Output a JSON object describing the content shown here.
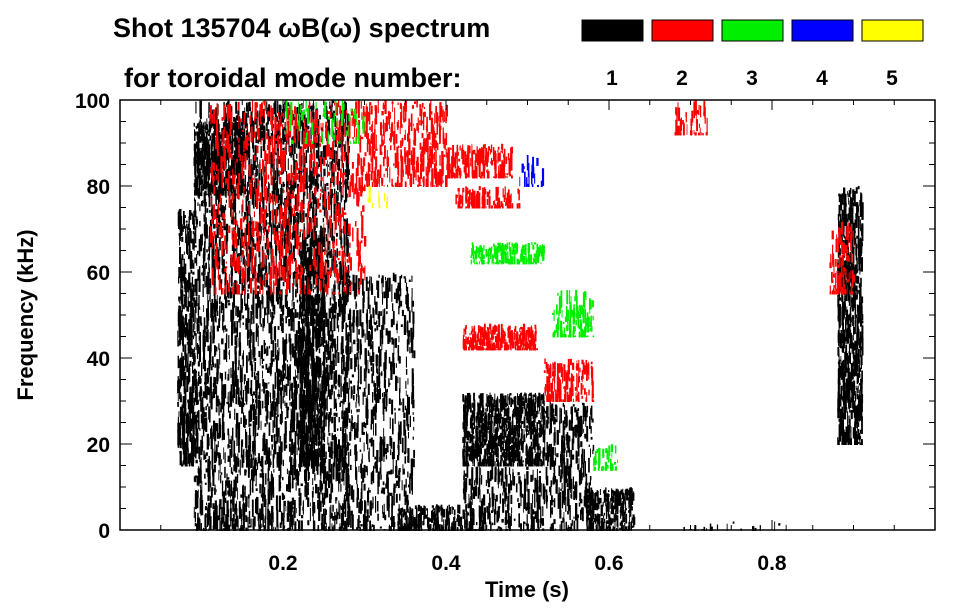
{
  "chart_data": {
    "type": "heatmap",
    "title_line1": "Shot 135704 ωB(ω) spectrum",
    "title_line2": "for toroidal mode number:",
    "xlabel": "Time (s)",
    "ylabel": "Frequency (kHz)",
    "xlim": [
      0.0,
      1.0
    ],
    "ylim": [
      0,
      100
    ],
    "xticks": [
      {
        "value": 0.2,
        "label": "0.2"
      },
      {
        "value": 0.4,
        "label": "0.4"
      },
      {
        "value": 0.6,
        "label": "0.6"
      },
      {
        "value": 0.8,
        "label": "0.8"
      }
    ],
    "yticks": [
      {
        "value": 0,
        "label": "0"
      },
      {
        "value": 20,
        "label": "20"
      },
      {
        "value": 40,
        "label": "40"
      },
      {
        "value": 60,
        "label": "60"
      },
      {
        "value": 80,
        "label": "80"
      },
      {
        "value": 100,
        "label": "100"
      }
    ],
    "legend": [
      {
        "mode": "1",
        "color": "#000000"
      },
      {
        "mode": "2",
        "color": "#ff0000"
      },
      {
        "mode": "3",
        "color": "#00ee00"
      },
      {
        "mode": "4",
        "color": "#0000ff"
      },
      {
        "mode": "5",
        "color": "#ffff00"
      }
    ],
    "regions": [
      {
        "mode": "1",
        "t": [
          0.07,
          0.09
        ],
        "f": [
          15,
          75
        ],
        "density": 0.55
      },
      {
        "mode": "1",
        "t": [
          0.09,
          0.15
        ],
        "f": [
          78,
          95
        ],
        "density": 0.75
      },
      {
        "mode": "1",
        "t": [
          0.09,
          0.16
        ],
        "f": [
          0,
          100
        ],
        "density": 0.3
      },
      {
        "mode": "1",
        "t": [
          0.16,
          0.28
        ],
        "f": [
          0,
          100
        ],
        "density": 0.3
      },
      {
        "mode": "1",
        "t": [
          0.22,
          0.25
        ],
        "f": [
          15,
          70
        ],
        "density": 0.55
      },
      {
        "mode": "1",
        "t": [
          0.27,
          0.36
        ],
        "f": [
          0,
          60
        ],
        "density": 0.2
      },
      {
        "mode": "1",
        "t": [
          0.34,
          0.42
        ],
        "f": [
          0,
          6
        ],
        "density": 0.7
      },
      {
        "mode": "1",
        "t": [
          0.42,
          0.52
        ],
        "f": [
          15,
          32
        ],
        "density": 0.92
      },
      {
        "mode": "1",
        "t": [
          0.42,
          0.52
        ],
        "f": [
          0,
          15
        ],
        "density": 0.3
      },
      {
        "mode": "1",
        "t": [
          0.52,
          0.58
        ],
        "f": [
          0,
          30
        ],
        "density": 0.28
      },
      {
        "mode": "1",
        "t": [
          0.57,
          0.63
        ],
        "f": [
          0,
          10
        ],
        "density": 0.75
      },
      {
        "mode": "1",
        "t": [
          0.66,
          0.82
        ],
        "f": [
          0,
          2
        ],
        "density": 0.1
      },
      {
        "mode": "1",
        "t": [
          0.88,
          0.91
        ],
        "f": [
          20,
          80
        ],
        "density": 0.6
      },
      {
        "mode": "2",
        "t": [
          0.11,
          0.3
        ],
        "f": [
          55,
          100
        ],
        "density": 0.16
      },
      {
        "mode": "2",
        "t": [
          0.3,
          0.4
        ],
        "f": [
          80,
          100
        ],
        "density": 0.3
      },
      {
        "mode": "2",
        "t": [
          0.4,
          0.48
        ],
        "f": [
          82,
          90
        ],
        "density": 0.5
      },
      {
        "mode": "2",
        "t": [
          0.41,
          0.49
        ],
        "f": [
          75,
          80
        ],
        "density": 0.5
      },
      {
        "mode": "2",
        "t": [
          0.42,
          0.51
        ],
        "f": [
          42,
          48
        ],
        "density": 0.85
      },
      {
        "mode": "2",
        "t": [
          0.52,
          0.58
        ],
        "f": [
          30,
          40
        ],
        "density": 0.4
      },
      {
        "mode": "2",
        "t": [
          0.68,
          0.72
        ],
        "f": [
          92,
          100
        ],
        "density": 0.3
      },
      {
        "mode": "2",
        "t": [
          0.87,
          0.9
        ],
        "f": [
          55,
          72
        ],
        "density": 0.3
      },
      {
        "mode": "3",
        "t": [
          0.43,
          0.52
        ],
        "f": [
          62,
          67
        ],
        "density": 0.7
      },
      {
        "mode": "3",
        "t": [
          0.53,
          0.58
        ],
        "f": [
          45,
          56
        ],
        "density": 0.35
      },
      {
        "mode": "3",
        "t": [
          0.2,
          0.3
        ],
        "f": [
          90,
          100
        ],
        "density": 0.1
      },
      {
        "mode": "3",
        "t": [
          0.58,
          0.61
        ],
        "f": [
          14,
          20
        ],
        "density": 0.3
      },
      {
        "mode": "4",
        "t": [
          0.49,
          0.52
        ],
        "f": [
          80,
          88
        ],
        "density": 0.15
      },
      {
        "mode": "5",
        "t": [
          0.3,
          0.33
        ],
        "f": [
          75,
          80
        ],
        "density": 0.1
      }
    ]
  }
}
